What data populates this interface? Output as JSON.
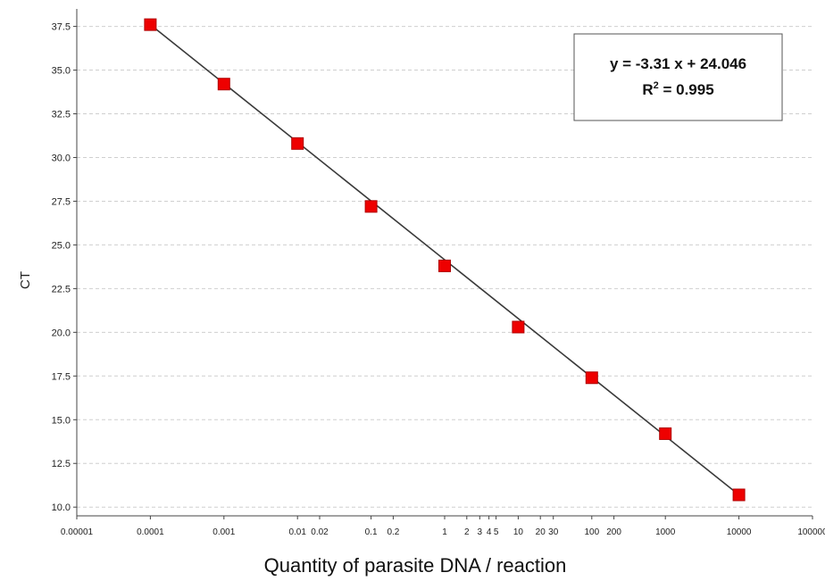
{
  "chart_data": {
    "type": "scatter",
    "x_scale": "log",
    "xlabel": "Quantity of parasite DNA / reaction",
    "ylabel": "CT",
    "xlim": [
      1e-05,
      100000
    ],
    "ylim": [
      9.5,
      38.5
    ],
    "grid": "horizontal-dashed",
    "x_tick_labels": [
      {
        "value": 1e-05,
        "label": "0.00001"
      },
      {
        "value": 0.0001,
        "label": "0.0001"
      },
      {
        "value": 0.001,
        "label": "0.001"
      },
      {
        "value": 0.01,
        "label": "0.01"
      },
      {
        "value": 0.02,
        "label": "0.02"
      },
      {
        "value": 0.1,
        "label": "0.1"
      },
      {
        "value": 0.2,
        "label": "0.2"
      },
      {
        "value": 1,
        "label": "1"
      },
      {
        "value": 2,
        "label": "2"
      },
      {
        "value": 3,
        "label": "3"
      },
      {
        "value": 4,
        "label": "4"
      },
      {
        "value": 5,
        "label": "5"
      },
      {
        "value": 10,
        "label": "10"
      },
      {
        "value": 20,
        "label": "20"
      },
      {
        "value": 30,
        "label": "30"
      },
      {
        "value": 100,
        "label": "100"
      },
      {
        "value": 200,
        "label": "200"
      },
      {
        "value": 1000,
        "label": "1000"
      },
      {
        "value": 10000,
        "label": "10000"
      },
      {
        "value": 100000,
        "label": "100000"
      }
    ],
    "y_ticks": [
      10.0,
      12.5,
      15.0,
      17.5,
      20.0,
      22.5,
      25.0,
      27.5,
      30.0,
      32.5,
      35.0,
      37.5
    ],
    "y_tick_labels": [
      "10.0",
      "12.5",
      "15.0",
      "17.5",
      "20.0",
      "22.5",
      "25.0",
      "27.5",
      "30.0",
      "32.5",
      "35.0",
      "37.5"
    ],
    "series": [
      {
        "points": [
          {
            "x": 0.0001,
            "y": 37.6
          },
          {
            "x": 0.001,
            "y": 34.2
          },
          {
            "x": 0.01,
            "y": 30.8
          },
          {
            "x": 0.1,
            "y": 27.2
          },
          {
            "x": 1,
            "y": 23.8
          },
          {
            "x": 10,
            "y": 20.3
          },
          {
            "x": 100,
            "y": 17.4
          },
          {
            "x": 1000,
            "y": 14.2
          },
          {
            "x": 10000,
            "y": 10.7
          }
        ]
      }
    ],
    "fit_line": {
      "from_x": 0.0001,
      "to_x": 10000,
      "slope": -3.31,
      "intercept": 24.046
    },
    "annotation": {
      "equation": "y = -3.31 x + 24.046",
      "r2_prefix": "R",
      "r2_sup": "2",
      "r2_suffix": " = 0.995"
    },
    "colors": {
      "marker": "#ee0000",
      "marker_stroke": "#b00000",
      "fit_line": "#3a3a3a",
      "grid": "#cfcfcf",
      "axis": "#444444"
    }
  }
}
